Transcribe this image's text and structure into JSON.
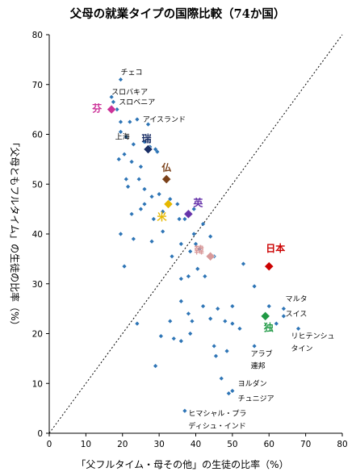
{
  "chart_data": {
    "type": "scatter",
    "title": "父母の就業タイプの国際比較（74か国）",
    "xlabel": "「父フルタイム・母その他」の生徒の比率（%）",
    "ylabel": "「父母ともフルタイム」の生徒の比率（%）",
    "xlim": [
      0,
      80
    ],
    "ylim": [
      0,
      80
    ],
    "xticks": [
      "0",
      "10",
      "20",
      "30",
      "40",
      "50",
      "60",
      "70",
      "80"
    ],
    "yticks": [
      "0",
      "10",
      "20",
      "30",
      "40",
      "50",
      "60",
      "70",
      "80"
    ],
    "grid": false,
    "reference_line": "y = x",
    "colors": {
      "point": "#2e75b6",
      "line": "#000000"
    },
    "points": [
      [
        19.5,
        71
      ],
      [
        17,
        67.5
      ],
      [
        17.5,
        66.5
      ],
      [
        18.5,
        65
      ],
      [
        19.5,
        62.5
      ],
      [
        22,
        62.5
      ],
      [
        24,
        63
      ],
      [
        27,
        62
      ],
      [
        19.5,
        60.5
      ],
      [
        21,
        59.5
      ],
      [
        23,
        58
      ],
      [
        26,
        58.5
      ],
      [
        27.5,
        57.5
      ],
      [
        29,
        57
      ],
      [
        29.5,
        56.5
      ],
      [
        20.5,
        56
      ],
      [
        19,
        55
      ],
      [
        22.5,
        54.5
      ],
      [
        25,
        53.5
      ],
      [
        21,
        51
      ],
      [
        24.5,
        51
      ],
      [
        21.5,
        49.5
      ],
      [
        26,
        49
      ],
      [
        30,
        48
      ],
      [
        28,
        47.5
      ],
      [
        33,
        47
      ],
      [
        26,
        46
      ],
      [
        35,
        46
      ],
      [
        22.5,
        44
      ],
      [
        25,
        45
      ],
      [
        31,
        44.5
      ],
      [
        35.5,
        43
      ],
      [
        37,
        43
      ],
      [
        38.5,
        44
      ],
      [
        39.5,
        45
      ],
      [
        28.5,
        43
      ],
      [
        42,
        42
      ],
      [
        39.5,
        40
      ],
      [
        31,
        40.5
      ],
      [
        19.5,
        40
      ],
      [
        23,
        39
      ],
      [
        28,
        38.5
      ],
      [
        44,
        39.5
      ],
      [
        36,
        38
      ],
      [
        40,
        38
      ],
      [
        41,
        37
      ],
      [
        38.5,
        36.5
      ],
      [
        45,
        35.5
      ],
      [
        33.5,
        35.5
      ],
      [
        20.5,
        33.5
      ],
      [
        40.5,
        33
      ],
      [
        53,
        34
      ],
      [
        42.5,
        31.5
      ],
      [
        36,
        31
      ],
      [
        38,
        31.5
      ],
      [
        56,
        29.5
      ],
      [
        36,
        26.5
      ],
      [
        38,
        24
      ],
      [
        42,
        25.5
      ],
      [
        46,
        25
      ],
      [
        50,
        25.5
      ],
      [
        44,
        23
      ],
      [
        48,
        22.5
      ],
      [
        50,
        22
      ],
      [
        24,
        22
      ],
      [
        33,
        22.5
      ],
      [
        39,
        22.5
      ],
      [
        30.5,
        19.5
      ],
      [
        34,
        19
      ],
      [
        36,
        18.5
      ],
      [
        38.5,
        20
      ],
      [
        45,
        17.5
      ],
      [
        52,
        21
      ],
      [
        60,
        25.5
      ],
      [
        64,
        25
      ],
      [
        64,
        23.5
      ],
      [
        62,
        22
      ],
      [
        68,
        21
      ],
      [
        56,
        17.5
      ],
      [
        45.5,
        15.5
      ],
      [
        48.5,
        16.5
      ],
      [
        29,
        13.5
      ],
      [
        47,
        11
      ],
      [
        50,
        8.5
      ],
      [
        49,
        8
      ],
      [
        37,
        4.5
      ]
    ],
    "highlighted": [
      {
        "name": "芬",
        "x": 17,
        "y": 65,
        "color": "#cc3399"
      },
      {
        "name": "瑞",
        "x": 27,
        "y": 57,
        "color": "#1a2f66"
      },
      {
        "name": "仏",
        "x": 32,
        "y": 51,
        "color": "#7a4018"
      },
      {
        "name": "英",
        "x": 38,
        "y": 44,
        "color": "#6633aa"
      },
      {
        "name": "米",
        "x": 32.5,
        "y": 46,
        "color": "#e6b800"
      },
      {
        "name": "日本",
        "x": 60,
        "y": 33.5,
        "color": "#cc0000"
      },
      {
        "name": "韓",
        "x": 44,
        "y": 35.5,
        "color": "#d99a9a"
      },
      {
        "name": "独",
        "x": 59,
        "y": 23.5,
        "color": "#1f9944"
      }
    ],
    "annotations": [
      {
        "text": "チェコ",
        "x": 19.5,
        "y": 72
      },
      {
        "text": "スロバキア",
        "x": 17,
        "y": 68
      },
      {
        "text": "スロベニア",
        "x": 19,
        "y": 66
      },
      {
        "text": "アイスランド",
        "x": 25.5,
        "y": 62.5
      },
      {
        "text": "上海",
        "x": 18,
        "y": 59
      },
      {
        "text": "マルタ",
        "x": 64.5,
        "y": 26.5
      },
      {
        "text": "スイス",
        "x": 64.5,
        "y": 23.5
      },
      {
        "text": "リヒテンシュ",
        "x": 66,
        "y": 19
      },
      {
        "text": "タイン",
        "x": 66,
        "y": 16.5
      },
      {
        "text": "アラブ",
        "x": 55,
        "y": 15.5
      },
      {
        "text": "連邦",
        "x": 55,
        "y": 13
      },
      {
        "text": "ヨルダン",
        "x": 51.5,
        "y": 9.5
      },
      {
        "text": "チュニジア",
        "x": 51.5,
        "y": 6.5
      },
      {
        "text": "ヒマシャル・プラ",
        "x": 38,
        "y": 3.5
      },
      {
        "text": "ディシュ・インド",
        "x": 38,
        "y": 1
      }
    ]
  }
}
